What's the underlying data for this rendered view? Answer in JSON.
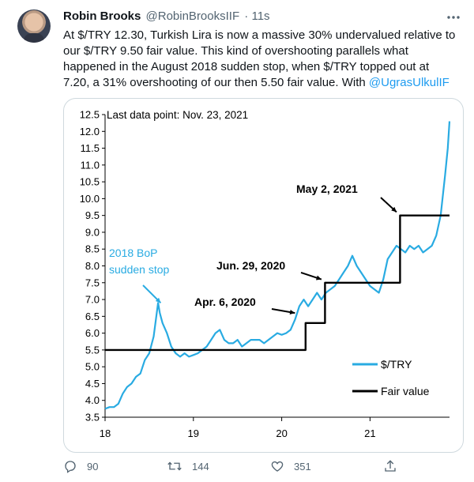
{
  "tweet": {
    "author_name": "Robin Brooks",
    "author_handle": "@RobinBrooksIIF",
    "time": "· 11s",
    "text_lines": [
      "At $/TRY 12.30, Turkish Lira is now a massive 30% undervalued relative to",
      "our $/TRY 9.50 fair value. This kind of overshooting parallels what",
      "happened in the August 2018 sudden stop, when $/TRY topped out at",
      "7.20, a 31% overshooting of our then 5.50 fair value. With "
    ],
    "mention": "@UgrasUlkulIF",
    "more_icon": "more-dots-icon"
  },
  "actions": {
    "reply": {
      "icon": "reply-icon",
      "count": "90"
    },
    "retweet": {
      "icon": "retweet-icon",
      "count": "144"
    },
    "like": {
      "icon": "heart-icon",
      "count": "351"
    },
    "share": {
      "icon": "share-icon"
    }
  },
  "colors": {
    "accent": "#1d9bf0",
    "series": "#29abe2",
    "fair": "#000000",
    "muted": "#536471"
  },
  "chart_data": {
    "type": "line",
    "title": "",
    "note": "Last data point: Nov. 23, 2021",
    "xlabel": "",
    "ylabel": "",
    "x_ticks": [
      "18",
      "19",
      "20",
      "21"
    ],
    "x_tick_values": [
      2018,
      2019,
      2020,
      2021
    ],
    "y_ticks": [
      "3.5",
      "4.0",
      "4.5",
      "5.0",
      "5.5",
      "6.0",
      "6.5",
      "7.0",
      "7.5",
      "8.0",
      "8.5",
      "9.0",
      "9.5",
      "10.0",
      "10.5",
      "11.0",
      "11.5",
      "12.0",
      "12.5"
    ],
    "ylim": [
      3.5,
      12.5
    ],
    "xlim": [
      2018.0,
      2021.9
    ],
    "grid": false,
    "legend_position": "bottom-right",
    "series": [
      {
        "name": "$/TRY",
        "color": "#29abe2",
        "x": [
          2018.0,
          2018.05,
          2018.1,
          2018.15,
          2018.2,
          2018.25,
          2018.3,
          2018.35,
          2018.4,
          2018.45,
          2018.5,
          2018.55,
          2018.6,
          2018.62,
          2018.65,
          2018.7,
          2018.75,
          2018.8,
          2018.85,
          2018.9,
          2018.95,
          2019.0,
          2019.05,
          2019.1,
          2019.15,
          2019.2,
          2019.25,
          2019.3,
          2019.35,
          2019.4,
          2019.45,
          2019.5,
          2019.55,
          2019.6,
          2019.65,
          2019.7,
          2019.75,
          2019.8,
          2019.85,
          2019.9,
          2019.95,
          2020.0,
          2020.05,
          2020.1,
          2020.15,
          2020.2,
          2020.25,
          2020.3,
          2020.35,
          2020.4,
          2020.45,
          2020.5,
          2020.55,
          2020.6,
          2020.65,
          2020.7,
          2020.75,
          2020.8,
          2020.85,
          2020.9,
          2020.95,
          2021.0,
          2021.05,
          2021.1,
          2021.15,
          2021.2,
          2021.25,
          2021.3,
          2021.35,
          2021.4,
          2021.45,
          2021.5,
          2021.55,
          2021.6,
          2021.65,
          2021.7,
          2021.75,
          2021.8,
          2021.85,
          2021.88,
          2021.9
        ],
        "values": [
          3.75,
          3.8,
          3.8,
          3.9,
          4.2,
          4.4,
          4.5,
          4.7,
          4.8,
          5.2,
          5.4,
          5.9,
          6.9,
          6.6,
          6.3,
          6.0,
          5.6,
          5.4,
          5.3,
          5.4,
          5.3,
          5.35,
          5.4,
          5.5,
          5.6,
          5.8,
          6.0,
          6.1,
          5.8,
          5.7,
          5.7,
          5.8,
          5.6,
          5.7,
          5.8,
          5.8,
          5.8,
          5.7,
          5.8,
          5.9,
          6.0,
          5.95,
          6.0,
          6.1,
          6.4,
          6.8,
          7.0,
          6.8,
          7.0,
          7.2,
          7.0,
          7.2,
          7.3,
          7.4,
          7.6,
          7.8,
          8.0,
          8.3,
          8.0,
          7.8,
          7.6,
          7.4,
          7.3,
          7.2,
          7.6,
          8.2,
          8.4,
          8.6,
          8.5,
          8.4,
          8.6,
          8.5,
          8.6,
          8.4,
          8.5,
          8.6,
          8.9,
          9.5,
          10.7,
          11.5,
          12.3
        ]
      },
      {
        "name": "Fair value",
        "color": "#000000",
        "x": [
          2018.0,
          2020.27,
          2020.27,
          2020.49,
          2020.49,
          2021.34,
          2021.34,
          2021.9
        ],
        "values": [
          5.5,
          5.5,
          6.3,
          6.3,
          7.5,
          7.5,
          9.5,
          9.5
        ]
      }
    ],
    "annotations": [
      {
        "text_lines": [
          "2018 BoP",
          "sudden stop"
        ],
        "color": "#29abe2",
        "x": 2018.63,
        "y": 6.9,
        "arrow": true
      },
      {
        "text_lines": [
          "Apr. 6, 2020"
        ],
        "color": "#000000",
        "x": 2020.15,
        "y": 6.6,
        "arrow": true
      },
      {
        "text_lines": [
          "Jun. 29, 2020"
        ],
        "color": "#000000",
        "x": 2020.45,
        "y": 7.6,
        "arrow": true
      },
      {
        "text_lines": [
          "May 2, 2021"
        ],
        "color": "#000000",
        "x": 2021.3,
        "y": 9.6,
        "arrow": true
      }
    ]
  }
}
